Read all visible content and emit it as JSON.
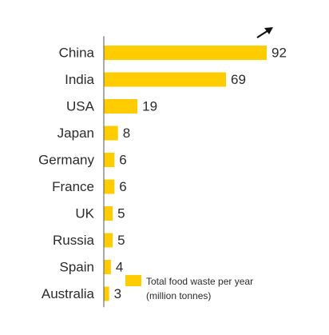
{
  "colors": {
    "bar": "#FFCC00",
    "axis": "#555555",
    "text": "#2b2b2b",
    "arrow": "#111111"
  },
  "icons": {
    "overflow_arrow": "arrow-up-right-icon"
  },
  "chart_data": {
    "type": "bar",
    "orientation": "horizontal",
    "title": "",
    "xlabel": "",
    "ylabel": "",
    "categories": [
      "China",
      "India",
      "USA",
      "Japan",
      "Germany",
      "France",
      "UK",
      "Russia",
      "Spain",
      "Australia"
    ],
    "values": [
      92,
      69,
      19,
      8,
      6,
      6,
      5,
      5,
      4,
      3
    ],
    "series": [
      {
        "name": "Total food waste per year (million tonnes)",
        "values": [
          92,
          69,
          19,
          8,
          6,
          6,
          5,
          5,
          4,
          3
        ]
      }
    ],
    "legend": {
      "line1": "Total food waste per year",
      "line2": "(million tonnes)",
      "position": "bottom-right"
    },
    "value_labels": true,
    "grid": false,
    "xlim": [
      0,
      92
    ]
  }
}
